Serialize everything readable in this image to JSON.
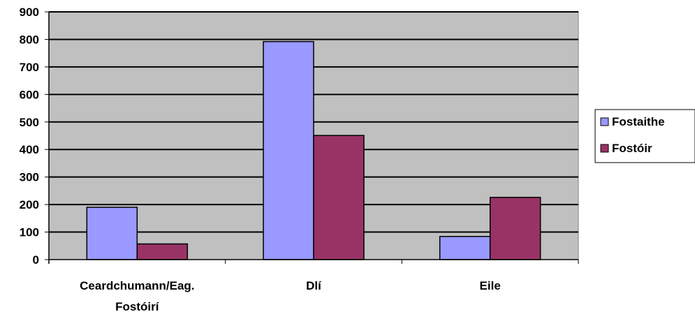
{
  "chart_data": {
    "type": "bar",
    "categories": [
      "Ceardchumann/Eag. Fostóirí",
      "Dlí",
      "Eile"
    ],
    "category_lines": [
      [
        "Ceardchumann/Eag.",
        "Fostóirí"
      ],
      [
        "Dlí"
      ],
      [
        "Eile"
      ]
    ],
    "series": [
      {
        "name": "Fostaithe",
        "values": [
          190,
          792,
          84
        ],
        "color": "#9999ff"
      },
      {
        "name": "Fostóir",
        "values": [
          57,
          451,
          226
        ],
        "color": "#993366"
      }
    ],
    "ylim": [
      0,
      900
    ],
    "yticks": [
      "0",
      "100",
      "200",
      "300",
      "400",
      "500",
      "600",
      "700",
      "800",
      "900"
    ],
    "grid": true,
    "plot_background": "#c0c0c0",
    "legend_position": "right"
  }
}
